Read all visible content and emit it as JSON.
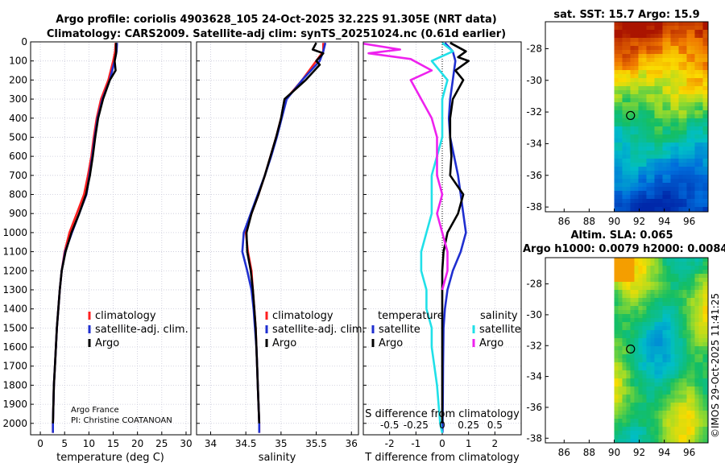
{
  "title": {
    "line1": "Argo profile: coriolis 4903628_105 24-Oct-2025 32.22S 91.305E (NRT data)",
    "line2": "Climatology: CARS2009. Satellite-adj clim: synTS_20251024.nc (0.61d earlier)"
  },
  "timestamp": "©IMOS 29-Oct-2025 11:41:25",
  "colors": {
    "climatology": "#ff2020",
    "satellite": "#1f2fd0",
    "argo": "#000000",
    "sal_satellite": "#20e0e8",
    "sal_argo": "#ee22ee",
    "grid": "#c8c8d8"
  },
  "chart_data": [
    {
      "id": "temperature",
      "type": "line",
      "xlabel": "temperature (deg C)",
      "ylabel": "",
      "xlim": [
        -2,
        31
      ],
      "ylim": [
        2060,
        0
      ],
      "xticks": [
        0,
        5,
        10,
        15,
        20,
        25,
        30
      ],
      "yticks": [
        0,
        100,
        200,
        300,
        400,
        500,
        600,
        700,
        800,
        900,
        1000,
        1100,
        1200,
        1300,
        1400,
        1500,
        1600,
        1700,
        1800,
        1900,
        2000
      ],
      "grid": true,
      "legend": {
        "position": "lower-right",
        "entries": [
          "climatology",
          "satellite-adj. clim.",
          "Argo"
        ]
      },
      "annotation": [
        "Argo France",
        "PI: Christine COATANOAN"
      ],
      "series": [
        {
          "name": "climatology",
          "color_key": "climatology",
          "points": [
            [
              15.5,
              5
            ],
            [
              15.4,
              50
            ],
            [
              15.0,
              100
            ],
            [
              14.0,
              200
            ],
            [
              12.5,
              300
            ],
            [
              11.6,
              400
            ],
            [
              11.0,
              500
            ],
            [
              10.5,
              600
            ],
            [
              9.8,
              700
            ],
            [
              9.0,
              800
            ],
            [
              7.5,
              900
            ],
            [
              6.0,
              1000
            ],
            [
              5.0,
              1100
            ],
            [
              4.4,
              1200
            ],
            [
              4.0,
              1300
            ],
            [
              3.7,
              1400
            ],
            [
              3.4,
              1500
            ],
            [
              3.2,
              1600
            ],
            [
              3.0,
              1700
            ],
            [
              2.8,
              1800
            ],
            [
              2.7,
              1900
            ],
            [
              2.6,
              2000
            ],
            [
              2.6,
              2050
            ]
          ]
        },
        {
          "name": "satellite-adj. clim.",
          "color_key": "satellite",
          "points": [
            [
              15.8,
              5
            ],
            [
              15.7,
              50
            ],
            [
              15.3,
              100
            ],
            [
              14.3,
              200
            ],
            [
              12.8,
              300
            ],
            [
              11.8,
              400
            ],
            [
              11.2,
              500
            ],
            [
              10.7,
              600
            ],
            [
              10.1,
              700
            ],
            [
              9.5,
              800
            ],
            [
              8.0,
              900
            ],
            [
              6.5,
              1000
            ],
            [
              5.1,
              1100
            ],
            [
              4.4,
              1200
            ],
            [
              4.0,
              1300
            ],
            [
              3.7,
              1400
            ],
            [
              3.4,
              1500
            ],
            [
              3.2,
              1600
            ],
            [
              3.0,
              1700
            ],
            [
              2.8,
              1800
            ],
            [
              2.7,
              1900
            ],
            [
              2.6,
              2000
            ],
            [
              2.6,
              2050
            ]
          ]
        },
        {
          "name": "Argo",
          "color_key": "argo",
          "points": [
            [
              15.6,
              5
            ],
            [
              15.6,
              60
            ],
            [
              15.3,
              100
            ],
            [
              15.5,
              150
            ],
            [
              14.3,
              200
            ],
            [
              12.9,
              300
            ],
            [
              11.9,
              400
            ],
            [
              11.3,
              500
            ],
            [
              10.8,
              600
            ],
            [
              10.2,
              700
            ],
            [
              9.4,
              800
            ],
            [
              8.0,
              900
            ],
            [
              6.4,
              1000
            ],
            [
              5.2,
              1100
            ],
            [
              4.4,
              1200
            ],
            [
              4.0,
              1300
            ],
            [
              3.7,
              1400
            ],
            [
              3.4,
              1500
            ],
            [
              3.2,
              1600
            ],
            [
              3.0,
              1700
            ],
            [
              2.8,
              1800
            ],
            [
              2.7,
              1900
            ],
            [
              2.6,
              2000
            ]
          ]
        }
      ]
    },
    {
      "id": "salinity",
      "type": "line",
      "xlabel": "salinity",
      "xlim": [
        33.8,
        36.1
      ],
      "ylim": [
        2060,
        0
      ],
      "xticks": [
        34,
        34.5,
        35,
        35.5,
        36
      ],
      "grid": true,
      "legend": {
        "position": "lower-right",
        "entries": [
          "climatology",
          "satellite-adj. clim.",
          "Argo"
        ]
      },
      "series": [
        {
          "name": "climatology",
          "color_key": "climatology",
          "points": [
            [
              35.6,
              5
            ],
            [
              35.6,
              50
            ],
            [
              35.5,
              100
            ],
            [
              35.3,
              200
            ],
            [
              35.07,
              300
            ],
            [
              35.0,
              400
            ],
            [
              34.93,
              500
            ],
            [
              34.85,
              600
            ],
            [
              34.77,
              700
            ],
            [
              34.68,
              800
            ],
            [
              34.58,
              900
            ],
            [
              34.5,
              1000
            ],
            [
              34.53,
              1100
            ],
            [
              34.58,
              1200
            ],
            [
              34.6,
              1300
            ],
            [
              34.62,
              1400
            ],
            [
              34.64,
              1500
            ],
            [
              34.65,
              1600
            ],
            [
              34.66,
              1700
            ],
            [
              34.67,
              1800
            ],
            [
              34.68,
              1900
            ],
            [
              34.69,
              2000
            ],
            [
              34.69,
              2050
            ]
          ]
        },
        {
          "name": "satellite-adj. clim.",
          "color_key": "satellite",
          "points": [
            [
              35.63,
              5
            ],
            [
              35.6,
              50
            ],
            [
              35.55,
              100
            ],
            [
              35.3,
              200
            ],
            [
              35.08,
              300
            ],
            [
              35.01,
              400
            ],
            [
              34.94,
              500
            ],
            [
              34.86,
              600
            ],
            [
              34.77,
              700
            ],
            [
              34.67,
              800
            ],
            [
              34.57,
              900
            ],
            [
              34.47,
              1000
            ],
            [
              34.45,
              1100
            ],
            [
              34.52,
              1200
            ],
            [
              34.58,
              1300
            ],
            [
              34.61,
              1400
            ],
            [
              34.63,
              1500
            ],
            [
              34.65,
              1600
            ],
            [
              34.66,
              1700
            ],
            [
              34.67,
              1800
            ],
            [
              34.68,
              1900
            ],
            [
              34.69,
              2000
            ],
            [
              34.69,
              2050
            ]
          ]
        },
        {
          "name": "Argo",
          "color_key": "argo",
          "points": [
            [
              35.5,
              5
            ],
            [
              35.45,
              40
            ],
            [
              35.6,
              60
            ],
            [
              35.5,
              100
            ],
            [
              35.55,
              120
            ],
            [
              35.35,
              200
            ],
            [
              35.05,
              300
            ],
            [
              35.0,
              400
            ],
            [
              34.93,
              500
            ],
            [
              34.85,
              600
            ],
            [
              34.77,
              700
            ],
            [
              34.68,
              800
            ],
            [
              34.58,
              900
            ],
            [
              34.51,
              1000
            ],
            [
              34.52,
              1100
            ],
            [
              34.57,
              1200
            ],
            [
              34.6,
              1300
            ],
            [
              34.62,
              1400
            ],
            [
              34.64,
              1500
            ],
            [
              34.65,
              1600
            ],
            [
              34.66,
              1700
            ],
            [
              34.67,
              1800
            ],
            [
              34.68,
              1900
            ],
            [
              34.69,
              2000
            ]
          ]
        }
      ]
    },
    {
      "id": "difference",
      "type": "line",
      "xlabel": "T difference from climatology",
      "xlim": [
        -3,
        3
      ],
      "ylim": [
        2060,
        0
      ],
      "xticks": [
        -2,
        -1,
        0,
        1,
        2
      ],
      "s_axis_label": "S difference from climatology",
      "s_ticks": [
        "-0.5",
        "-0.25",
        "0",
        "0.25",
        "0.5"
      ],
      "grid": true,
      "legend": {
        "position": "lower-center",
        "temperature_header": "temperature",
        "salinity_header": "salinity",
        "temperature_entries": [
          "satellite",
          "Argo"
        ],
        "salinity_entries": [
          "satellite",
          "Argo"
        ]
      },
      "series": [
        {
          "name": "temperature satellite",
          "color_key": "satellite",
          "points": [
            [
              0.1,
              5
            ],
            [
              0.4,
              50
            ],
            [
              0.5,
              100
            ],
            [
              0.4,
              200
            ],
            [
              0.3,
              300
            ],
            [
              0.25,
              400
            ],
            [
              0.3,
              500
            ],
            [
              0.45,
              600
            ],
            [
              0.6,
              700
            ],
            [
              0.7,
              800
            ],
            [
              0.8,
              900
            ],
            [
              0.9,
              1000
            ],
            [
              0.7,
              1100
            ],
            [
              0.4,
              1200
            ],
            [
              0.2,
              1300
            ],
            [
              0.1,
              1400
            ],
            [
              0.05,
              1500
            ],
            [
              0.03,
              1700
            ],
            [
              0.02,
              1900
            ],
            [
              0.01,
              2050
            ]
          ]
        },
        {
          "name": "temperature Argo",
          "color_key": "argo",
          "points": [
            [
              0.3,
              5
            ],
            [
              0.9,
              50
            ],
            [
              0.6,
              80
            ],
            [
              1.0,
              100
            ],
            [
              0.5,
              150
            ],
            [
              0.8,
              200
            ],
            [
              0.4,
              300
            ],
            [
              0.3,
              400
            ],
            [
              0.3,
              500
            ],
            [
              0.35,
              600
            ],
            [
              0.3,
              700
            ],
            [
              0.8,
              800
            ],
            [
              0.6,
              900
            ],
            [
              0.2,
              1000
            ],
            [
              0.05,
              1100
            ],
            [
              0.0,
              1200
            ],
            [
              0.0,
              1300
            ],
            [
              0.0,
              1400
            ],
            [
              0.0,
              1500
            ],
            [
              0.0,
              1600
            ],
            [
              0.0,
              1800
            ],
            [
              0.0,
              2000
            ]
          ]
        },
        {
          "name": "salinity satellite",
          "color_key": "sal_satellite",
          "points": [
            [
              0.0,
              5
            ],
            [
              0.1,
              50
            ],
            [
              -0.1,
              100
            ],
            [
              0.05,
              200
            ],
            [
              0.0,
              300
            ],
            [
              0.0,
              500
            ],
            [
              -0.1,
              700
            ],
            [
              -0.1,
              900
            ],
            [
              -0.15,
              1000
            ],
            [
              -0.2,
              1100
            ],
            [
              -0.2,
              1200
            ],
            [
              -0.15,
              1300
            ],
            [
              -0.15,
              1400
            ],
            [
              -0.1,
              1500
            ],
            [
              -0.1,
              1600
            ],
            [
              -0.05,
              1800
            ],
            [
              -0.02,
              2000
            ],
            [
              0.0,
              2050
            ]
          ]
        },
        {
          "name": "salinity Argo",
          "color_key": "sal_argo",
          "points": [
            [
              -0.8,
              5
            ],
            [
              -0.4,
              40
            ],
            [
              -0.7,
              60
            ],
            [
              -0.3,
              90
            ],
            [
              -0.1,
              150
            ],
            [
              -0.3,
              200
            ],
            [
              -0.2,
              300
            ],
            [
              -0.1,
              400
            ],
            [
              -0.05,
              500
            ],
            [
              -0.05,
              700
            ],
            [
              0.0,
              800
            ],
            [
              -0.05,
              900
            ],
            [
              0.0,
              1000
            ],
            [
              0.05,
              1100
            ],
            [
              0.05,
              1200
            ],
            [
              0.0,
              1300
            ]
          ]
        }
      ]
    },
    {
      "id": "sst_map",
      "type": "heatmap",
      "title": "sat. SST: 15.7 Argo: 15.9",
      "xlim": [
        84.5,
        97.5
      ],
      "ylim": [
        -38.3,
        -26.3
      ],
      "xticks": [
        86,
        88,
        90,
        92,
        94,
        96
      ],
      "yticks": [
        -28,
        -30,
        -32,
        -34,
        -36,
        -38
      ],
      "data_west_edge": 90,
      "float_position": [
        91.305,
        -32.22
      ]
    },
    {
      "id": "sla_map",
      "type": "heatmap",
      "title_line1": "Altim. SLA: 0.065",
      "title_line2": "Argo h1000: 0.0079 h2000: 0.0084",
      "xlim": [
        84.5,
        97.5
      ],
      "ylim": [
        -38.3,
        -26.3
      ],
      "xticks": [
        86,
        88,
        90,
        92,
        94,
        96
      ],
      "yticks": [
        -28,
        -30,
        -32,
        -34,
        -36,
        -38
      ],
      "data_west_edge": 90,
      "float_position": [
        91.305,
        -32.22
      ]
    }
  ]
}
